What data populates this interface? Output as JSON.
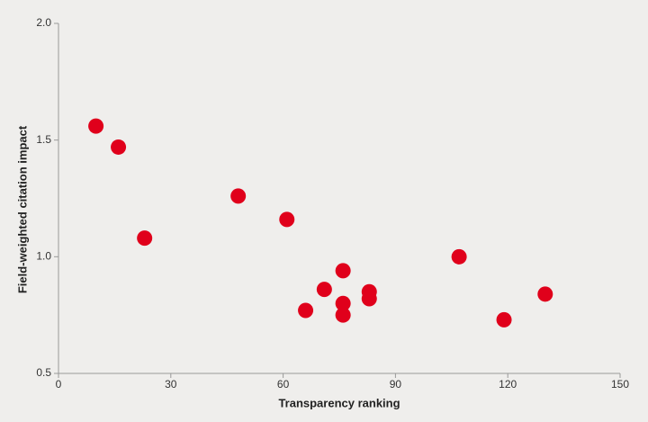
{
  "chart_data": {
    "type": "scatter",
    "x_label": "Transparency ranking",
    "y_label": "Field-weighted citation impact",
    "color": "#e0001b",
    "series": [
      {
        "x": [
          10,
          16,
          23,
          48,
          61,
          76,
          71,
          66,
          76,
          76,
          83,
          83,
          107,
          119,
          130
        ],
        "values": [
          1.56,
          1.47,
          1.08,
          1.26,
          1.16,
          0.94,
          0.86,
          0.77,
          0.8,
          0.75,
          0.85,
          0.82,
          1.0,
          0.73,
          0.84
        ]
      }
    ],
    "xlim": [
      0,
      150
    ],
    "xticks": [
      0,
      30,
      60,
      90,
      120,
      150
    ],
    "ylim": [
      0.5,
      2.0
    ],
    "yticks": [
      0.5,
      {
        "value": 1,
        "label": "1.0"
      },
      1.5,
      {
        "value": 2,
        "label": "2.0"
      }
    ]
  }
}
